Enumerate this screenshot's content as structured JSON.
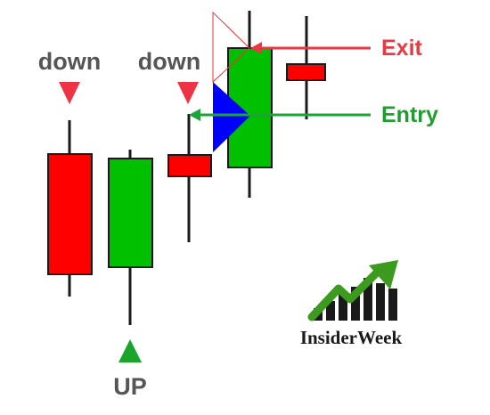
{
  "colors": {
    "bearish": "#ff0000",
    "bullish": "#00c000",
    "candle_border": "#1a1a1a",
    "wick": "#1a1a1a",
    "down_marker": "#ee3344",
    "up_marker": "#1aa52a",
    "entry_arrow": "#1ea33a",
    "exit_arrow": "#e83842",
    "blue_triangle": "#0000ff",
    "thin_triangle": "#e33",
    "label_gray": "#555555"
  },
  "markers": {
    "down_1": "down",
    "down_2": "down",
    "up": "UP"
  },
  "annotations": {
    "exit": "Exit",
    "entry": "Entry"
  },
  "brand": {
    "name": "InsiderWeek",
    "logo_icon": "rising-bar-chart-with-arrow-icon"
  },
  "candles": [
    {
      "id": "candle-1",
      "direction": "bearish"
    },
    {
      "id": "candle-2",
      "direction": "bullish"
    },
    {
      "id": "candle-3",
      "direction": "bearish"
    },
    {
      "id": "candle-4",
      "direction": "bullish"
    },
    {
      "id": "candle-5",
      "direction": "bearish"
    }
  ]
}
